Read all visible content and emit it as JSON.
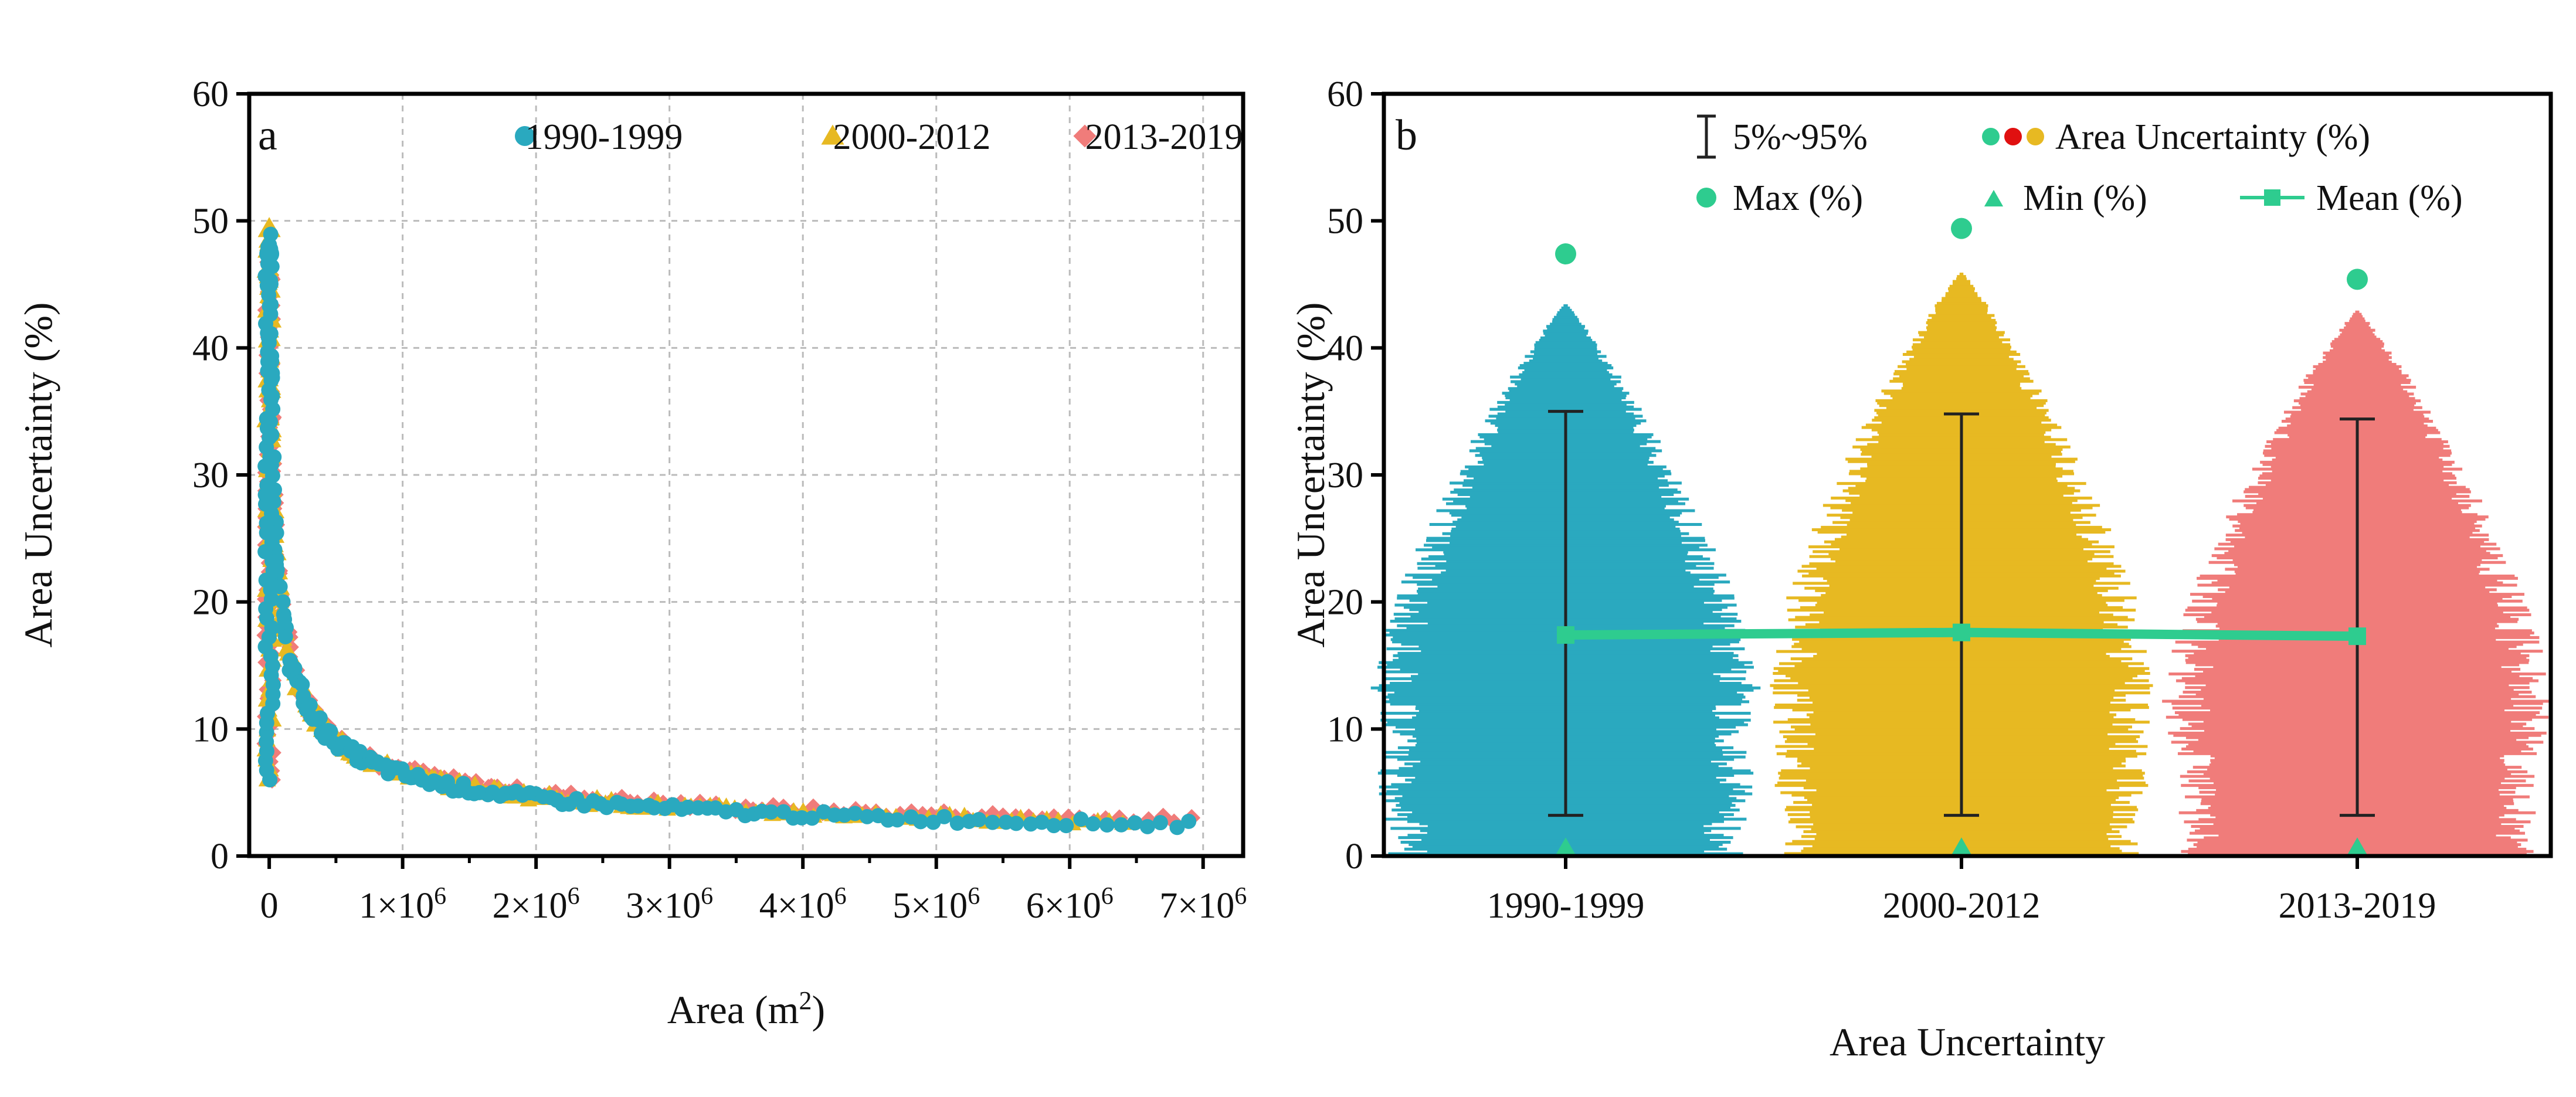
{
  "chart_data": [
    {
      "type": "scatter",
      "panel_label": "a",
      "xlabel_prefix": "Area (m",
      "xlabel_sup": "2",
      "xlabel_suffix": ")",
      "ylabel": "Area Uncertainty (%)",
      "xlim": [
        -150000,
        7300000
      ],
      "ylim": [
        0,
        60
      ],
      "grid": true,
      "legend_position": "top",
      "y_ticks": [
        "0",
        "10",
        "20",
        "30",
        "40",
        "50",
        "60"
      ],
      "x_ticks": [
        {
          "value": 0,
          "label": "0",
          "exp": ""
        },
        {
          "value": 1000000,
          "label": "1×10",
          "exp": "6"
        },
        {
          "value": 2000000,
          "label": "2×10",
          "exp": "6"
        },
        {
          "value": 3000000,
          "label": "3×10",
          "exp": "6"
        },
        {
          "value": 4000000,
          "label": "4×10",
          "exp": "6"
        },
        {
          "value": 5000000,
          "label": "5×10",
          "exp": "6"
        },
        {
          "value": 6000000,
          "label": "6×10",
          "exp": "6"
        },
        {
          "value": 7000000,
          "label": "7×10",
          "exp": "6"
        }
      ],
      "series": [
        {
          "name": "1990-1999",
          "marker": "circle",
          "color": "#2aa9bf",
          "max_value": 47.4,
          "max_area": 0,
          "max_area_extent": 6900000
        },
        {
          "name": "2000-2012",
          "marker": "triangle",
          "color": "#e7b922",
          "max_value": 49.4,
          "max_area": 0,
          "max_area_extent": 6400000
        },
        {
          "name": "2013-2019",
          "marker": "diamond",
          "color": "#f07c7a",
          "max_value": 45.4,
          "max_area": 0,
          "max_area_extent": 6900000
        }
      ]
    },
    {
      "type": "violin",
      "panel_label": "b",
      "xlabel": "Area Uncertainty",
      "ylabel": "Area Uncertainty (%)",
      "ylim": [
        0,
        60
      ],
      "grid": false,
      "y_ticks": [
        "0",
        "10",
        "20",
        "30",
        "40",
        "50",
        "60"
      ],
      "categories": [
        "1990-1999",
        "2000-2012",
        "2013-2019"
      ],
      "series": [
        {
          "name": "1990-1999",
          "color": "#2aa9bf",
          "p5": 3.2,
          "p95": 35.0,
          "mean": 17.4,
          "max": 47.4,
          "min": 0.3,
          "top": 43.5
        },
        {
          "name": "2000-2012",
          "color": "#e7b922",
          "p5": 3.2,
          "p95": 34.8,
          "mean": 17.6,
          "max": 49.4,
          "min": 0.3,
          "top": 46.0
        },
        {
          "name": "2013-2019",
          "color": "#f07c7a",
          "p5": 3.2,
          "p95": 34.4,
          "mean": 17.3,
          "max": 45.4,
          "min": 0.3,
          "top": 43.0
        }
      ],
      "legend": {
        "range_label": "5%~95%",
        "area_label": "Area Uncertainty (%)",
        "max_label": "Max (%)",
        "min_label": "Min (%)",
        "mean_label": "Mean (%)",
        "area_dot_colors": [
          "#2ecc8f",
          "#e01010",
          "#e7b922"
        ]
      },
      "marker_color": "#2ecc8f",
      "mean_line_color": "#2ecc8f"
    }
  ]
}
